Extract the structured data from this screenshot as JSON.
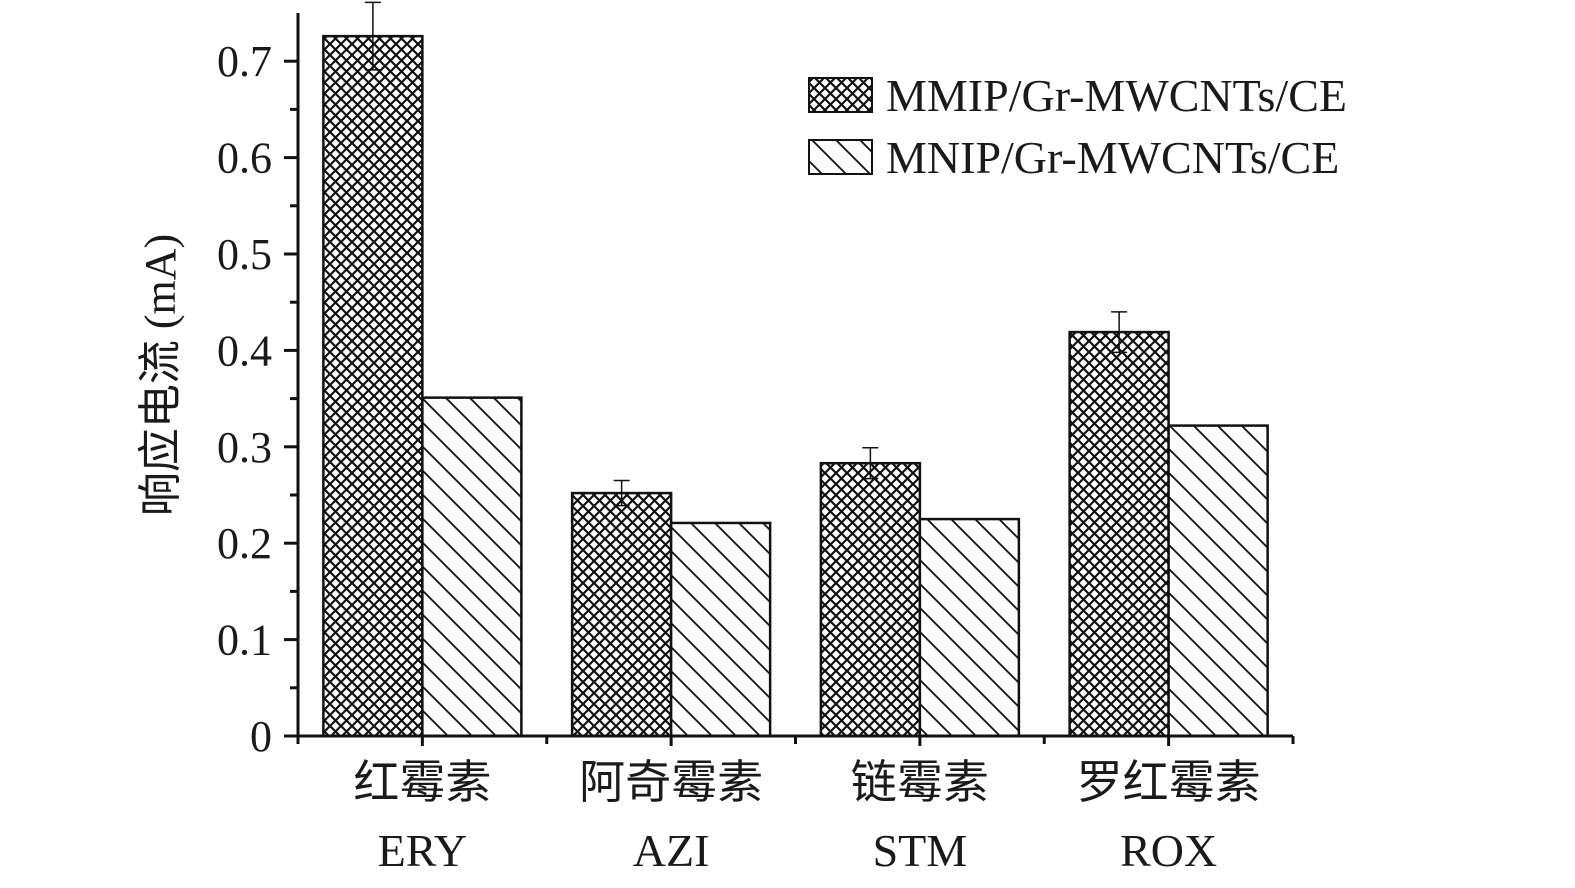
{
  "chart_data": {
    "type": "bar",
    "title": "",
    "xlabel": "",
    "ylabel": "响应电流 (mA)",
    "ylim": [
      0,
      0.75
    ],
    "yticks": [
      "0",
      "0.1",
      "0.2",
      "0.3",
      "0.4",
      "0.5",
      "0.6",
      "0.7"
    ],
    "grid": false,
    "legend_position": "top-right",
    "categories": [
      {
        "cn": "红霉素",
        "en": "ERY"
      },
      {
        "cn": "阿奇霉素",
        "en": "AZI"
      },
      {
        "cn": "链霉素",
        "en": "STM"
      },
      {
        "cn": "罗红霉素",
        "en": "ROX"
      }
    ],
    "series": [
      {
        "name": "MMIP/Gr-MWCNTs/CE",
        "pattern": "crosshatch",
        "values": [
          0.726,
          0.252,
          0.283,
          0.419
        ],
        "errors": [
          0.035,
          0.013,
          0.016,
          0.021
        ]
      },
      {
        "name": "MNIP/Gr-MWCNTs/CE",
        "pattern": "diagonal",
        "values": [
          0.351,
          0.221,
          0.225,
          0.322
        ],
        "errors": [
          null,
          null,
          null,
          null
        ]
      }
    ],
    "colors": {
      "stroke": "#111111",
      "background": "#ffffff"
    }
  }
}
